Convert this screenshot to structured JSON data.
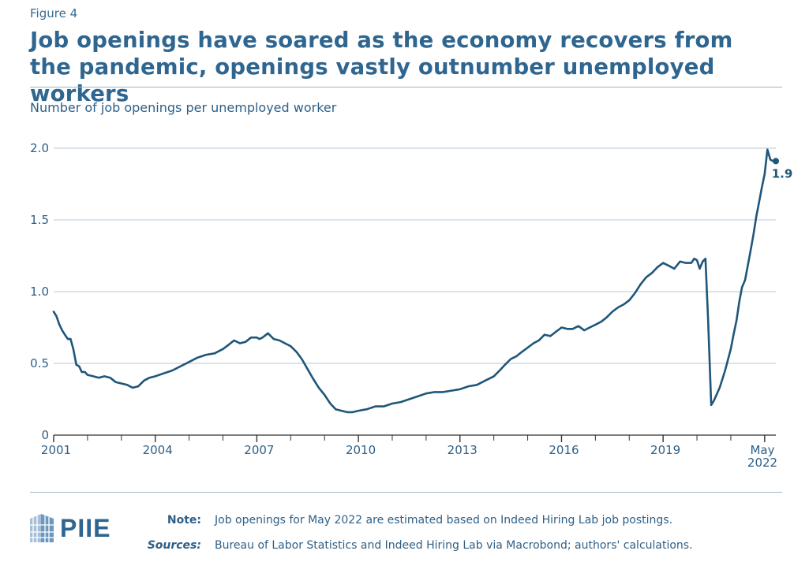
{
  "figure_label": "Figure 4",
  "title": "Job openings have soared as the economy recovers from the pandemic, openings vastly outnumber unemployed workers",
  "subtitle": "Number of job openings per unemployed worker",
  "logo_text": "PIIE",
  "note": {
    "key": "Note:",
    "text": "Job openings for May 2022 are estimated based on Indeed Hiring Lab job postings."
  },
  "sources": {
    "key": "Sources:",
    "text": "Bureau of Labor Statistics and Indeed Hiring Lab via Macrobond; authors' calculations."
  },
  "colors": {
    "line": "#1f5679",
    "grid": "#b7c9d8",
    "text": "#2e5f86"
  },
  "chart_data": {
    "type": "line",
    "xlim": [
      2001.0,
      2022.33
    ],
    "ylim": [
      0,
      2.0
    ],
    "yticks": [
      {
        "value": 0,
        "label": "0"
      },
      {
        "value": 0.5,
        "label": "0.5"
      },
      {
        "value": 1.0,
        "label": "1.0"
      },
      {
        "value": 1.5,
        "label": "1.5"
      },
      {
        "value": 2.0,
        "label": "2.0"
      }
    ],
    "xticks": [
      {
        "value": 2001,
        "label": "2001"
      },
      {
        "value": 2004,
        "label": "2004"
      },
      {
        "value": 2007,
        "label": "2007"
      },
      {
        "value": 2010,
        "label": "2010"
      },
      {
        "value": 2013,
        "label": "2013"
      },
      {
        "value": 2016,
        "label": "2016"
      },
      {
        "value": 2019,
        "label": "2019"
      }
    ],
    "last_label": {
      "line1": "May",
      "line2": "2022"
    },
    "end_value_label": "1.9",
    "series": [
      {
        "x": [
          2001.0,
          2001.08,
          2001.17,
          2001.25,
          2001.33,
          2001.42,
          2001.5,
          2001.58,
          2001.67,
          2001.75,
          2001.83,
          2001.92,
          2002.0,
          2002.17,
          2002.33,
          2002.5,
          2002.67,
          2002.83,
          2003.0,
          2003.17,
          2003.33,
          2003.5,
          2003.67,
          2003.83,
          2004.0,
          2004.25,
          2004.5,
          2004.75,
          2005.0,
          2005.25,
          2005.5,
          2005.75,
          2006.0,
          2006.17,
          2006.33,
          2006.5,
          2006.67,
          2006.83,
          2007.0,
          2007.08,
          2007.17,
          2007.33,
          2007.5,
          2007.67,
          2007.83,
          2008.0,
          2008.17,
          2008.33,
          2008.5,
          2008.67,
          2008.83,
          2009.0,
          2009.17,
          2009.33,
          2009.5,
          2009.67,
          2009.83,
          2010.0,
          2010.25,
          2010.5,
          2010.75,
          2011.0,
          2011.25,
          2011.5,
          2011.75,
          2012.0,
          2012.25,
          2012.5,
          2012.75,
          2013.0,
          2013.25,
          2013.5,
          2013.75,
          2014.0,
          2014.17,
          2014.33,
          2014.5,
          2014.67,
          2014.83,
          2015.0,
          2015.17,
          2015.33,
          2015.5,
          2015.67,
          2015.83,
          2016.0,
          2016.17,
          2016.33,
          2016.5,
          2016.67,
          2016.83,
          2017.0,
          2017.17,
          2017.33,
          2017.5,
          2017.67,
          2017.83,
          2018.0,
          2018.17,
          2018.33,
          2018.5,
          2018.67,
          2018.83,
          2019.0,
          2019.17,
          2019.33,
          2019.5,
          2019.67,
          2019.83,
          2019.92,
          2020.0,
          2020.08,
          2020.17,
          2020.25,
          2020.33,
          2020.42,
          2020.5,
          2020.67,
          2020.83,
          2021.0,
          2021.08,
          2021.17,
          2021.25,
          2021.33,
          2021.42,
          2021.5,
          2021.58,
          2021.67,
          2021.75,
          2021.83,
          2021.92,
          2022.0,
          2022.08,
          2022.17,
          2022.25,
          2022.33
        ],
        "y": [
          0.86,
          0.83,
          0.77,
          0.73,
          0.7,
          0.67,
          0.67,
          0.6,
          0.49,
          0.48,
          0.44,
          0.44,
          0.42,
          0.41,
          0.4,
          0.41,
          0.4,
          0.37,
          0.36,
          0.35,
          0.33,
          0.34,
          0.38,
          0.4,
          0.41,
          0.43,
          0.45,
          0.48,
          0.51,
          0.54,
          0.56,
          0.57,
          0.6,
          0.63,
          0.66,
          0.64,
          0.65,
          0.68,
          0.68,
          0.67,
          0.68,
          0.71,
          0.67,
          0.66,
          0.64,
          0.62,
          0.58,
          0.53,
          0.46,
          0.39,
          0.33,
          0.28,
          0.22,
          0.18,
          0.17,
          0.16,
          0.16,
          0.17,
          0.18,
          0.2,
          0.2,
          0.22,
          0.23,
          0.25,
          0.27,
          0.29,
          0.3,
          0.3,
          0.31,
          0.32,
          0.34,
          0.35,
          0.38,
          0.41,
          0.45,
          0.49,
          0.53,
          0.55,
          0.58,
          0.61,
          0.64,
          0.66,
          0.7,
          0.69,
          0.72,
          0.75,
          0.74,
          0.74,
          0.76,
          0.73,
          0.75,
          0.77,
          0.79,
          0.82,
          0.86,
          0.89,
          0.91,
          0.94,
          0.99,
          1.05,
          1.1,
          1.13,
          1.17,
          1.2,
          1.18,
          1.16,
          1.21,
          1.2,
          1.2,
          1.23,
          1.22,
          1.16,
          1.21,
          1.23,
          0.8,
          0.21,
          0.24,
          0.33,
          0.45,
          0.6,
          0.7,
          0.8,
          0.93,
          1.03,
          1.08,
          1.18,
          1.28,
          1.4,
          1.52,
          1.62,
          1.73,
          1.82,
          1.99,
          1.92,
          1.91,
          1.91
        ]
      }
    ]
  }
}
